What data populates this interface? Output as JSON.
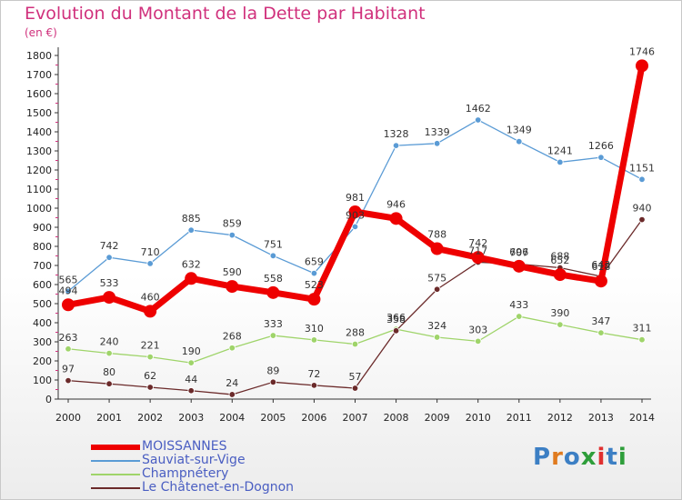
{
  "header": {
    "title": "Evolution du Montant de la Dette par Habitant",
    "unit": "(en €)"
  },
  "colors": {
    "title": "#d0307c",
    "legend_text": "#4a5ec2",
    "moissannes": "#ee0000",
    "sauviat": "#5a9bd5",
    "champnetery": "#9fd46a",
    "chatenet": "#6b2a2a"
  },
  "chart_data": {
    "type": "line",
    "title": "Evolution du Montant de la Dette par Habitant",
    "ylabel": "(en €)",
    "xlabel": "",
    "x": [
      "2000",
      "2001",
      "2002",
      "2003",
      "2004",
      "2005",
      "2006",
      "2007",
      "2008",
      "2009",
      "2010",
      "2011",
      "2012",
      "2013",
      "2014"
    ],
    "ylim": [
      0,
      1800
    ],
    "yticks": [
      0,
      100,
      200,
      300,
      400,
      500,
      600,
      700,
      800,
      900,
      1000,
      1100,
      1200,
      1300,
      1400,
      1500,
      1600,
      1700,
      1800
    ],
    "grid": false,
    "legend_position": "bottom-left",
    "series": [
      {
        "name": "MOISSANNES",
        "color": "#ee0000",
        "values": [
          494,
          533,
          460,
          632,
          590,
          558,
          523,
          981,
          946,
          788,
          742,
          696,
          652,
          618,
          1746
        ]
      },
      {
        "name": "Sauviat-sur-Vige",
        "color": "#5a9bd5",
        "values": [
          565,
          742,
          710,
          885,
          859,
          751,
          659,
          903,
          1328,
          1339,
          1462,
          1349,
          1241,
          1266,
          1151
        ]
      },
      {
        "name": "Champnétery",
        "color": "#9fd46a",
        "values": [
          263,
          240,
          221,
          190,
          268,
          333,
          310,
          288,
          366,
          324,
          303,
          433,
          390,
          347,
          311
        ]
      },
      {
        "name": "Le Châtenet-en-Dognon",
        "color": "#6b2a2a",
        "values": [
          97,
          80,
          62,
          44,
          24,
          89,
          72,
          57,
          358,
          575,
          717,
          707,
          688,
          643,
          940
        ]
      }
    ],
    "data_labels": [
      {
        "series": 0,
        "labels": [
          "494",
          "533",
          "460",
          "632",
          "590",
          "558",
          "523",
          "981",
          "946",
          "788",
          "742",
          "696",
          "652",
          "618",
          "1746"
        ]
      },
      {
        "series": 1,
        "labels": [
          "565",
          "742",
          "710",
          "885",
          "859",
          "751",
          "659",
          "903",
          "1328",
          "1339",
          "1462",
          "1349",
          "1241",
          "1266",
          "1151"
        ]
      },
      {
        "series": 2,
        "labels": [
          "263",
          "240",
          "221",
          "190",
          "268",
          "333",
          "310",
          "288",
          "366",
          "324",
          "303",
          "433",
          "390",
          "347",
          "311"
        ]
      },
      {
        "series": 3,
        "labels": [
          "97",
          "80",
          "62",
          "44",
          "24",
          "89",
          "72",
          "57",
          "358",
          "575",
          "717",
          "707",
          "688",
          "643",
          "940"
        ]
      }
    ]
  },
  "legend": {
    "items": [
      {
        "label": "MOISSANNES"
      },
      {
        "label": "Sauviat-sur-Vige"
      },
      {
        "label": "Champnétery"
      },
      {
        "label": "Le Châtenet-en-Dognon"
      }
    ]
  },
  "logo": {
    "text": "Proxiti",
    "letter_colors": [
      "#3c7fc4",
      "#e07b1f",
      "#3c7fc4",
      "#2e9e3a",
      "#e03030",
      "#3c7fc4",
      "#2e9e3a"
    ]
  }
}
